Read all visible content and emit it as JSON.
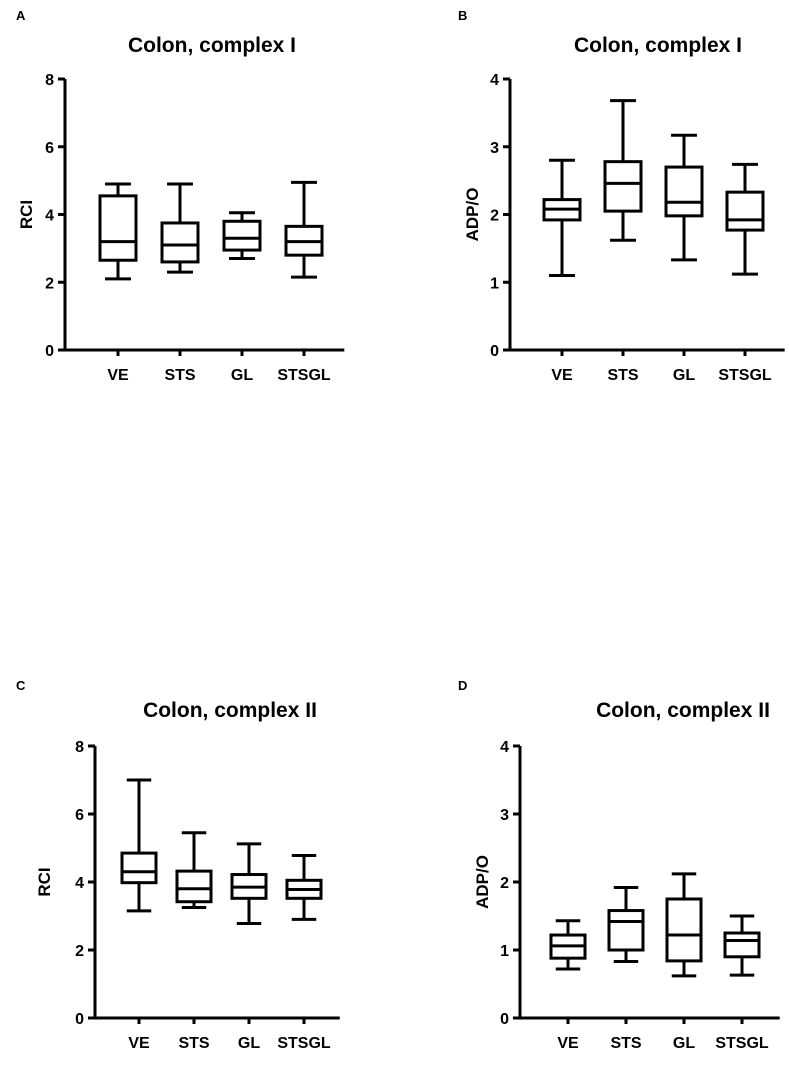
{
  "panels": [
    {
      "letter": "A",
      "chart_data": {
        "type": "box",
        "title": "Colon, complex I",
        "ylabel": "RCI",
        "xlabel": "",
        "categories": [
          "VE",
          "STS",
          "GL",
          "STSGL"
        ],
        "ylim": [
          0,
          8
        ],
        "yticks": [
          0,
          2,
          4,
          6,
          8
        ],
        "boxes": [
          {
            "min": 2.1,
            "q1": 2.65,
            "median": 3.2,
            "q3": 4.55,
            "max": 4.9
          },
          {
            "min": 2.3,
            "q1": 2.6,
            "median": 3.1,
            "q3": 3.75,
            "max": 4.9
          },
          {
            "min": 2.7,
            "q1": 2.95,
            "median": 3.3,
            "q3": 3.8,
            "max": 4.05
          },
          {
            "min": 2.15,
            "q1": 2.8,
            "median": 3.2,
            "q3": 3.65,
            "max": 4.95
          }
        ]
      }
    },
    {
      "letter": "B",
      "chart_data": {
        "type": "box",
        "title": "Colon, complex I",
        "ylabel": "ADP/O",
        "xlabel": "",
        "categories": [
          "VE",
          "STS",
          "GL",
          "STSGL"
        ],
        "ylim": [
          0,
          4
        ],
        "yticks": [
          0,
          1,
          2,
          3,
          4
        ],
        "boxes": [
          {
            "min": 1.1,
            "q1": 1.92,
            "median": 2.08,
            "q3": 2.22,
            "max": 2.8
          },
          {
            "min": 1.62,
            "q1": 2.05,
            "median": 2.46,
            "q3": 2.78,
            "max": 3.68
          },
          {
            "min": 1.33,
            "q1": 1.98,
            "median": 2.18,
            "q3": 2.7,
            "max": 3.17
          },
          {
            "min": 1.12,
            "q1": 1.77,
            "median": 1.92,
            "q3": 2.33,
            "max": 2.74
          }
        ]
      }
    },
    {
      "letter": "C",
      "chart_data": {
        "type": "box",
        "title": "Colon, complex II",
        "ylabel": "RCI",
        "xlabel": "",
        "categories": [
          "VE",
          "STS",
          "GL",
          "STSGL"
        ],
        "ylim": [
          0,
          8
        ],
        "yticks": [
          0,
          2,
          4,
          6,
          8
        ],
        "boxes": [
          {
            "min": 3.15,
            "q1": 3.98,
            "median": 4.3,
            "q3": 4.85,
            "max": 7.0
          },
          {
            "min": 3.25,
            "q1": 3.42,
            "median": 3.8,
            "q3": 4.32,
            "max": 5.45
          },
          {
            "min": 2.78,
            "q1": 3.52,
            "median": 3.85,
            "q3": 4.22,
            "max": 5.12
          },
          {
            "min": 2.9,
            "q1": 3.52,
            "median": 3.78,
            "q3": 4.05,
            "max": 4.78
          }
        ]
      }
    },
    {
      "letter": "D",
      "chart_data": {
        "type": "box",
        "title": "Colon, complex II",
        "ylabel": "ADP/O",
        "xlabel": "",
        "categories": [
          "VE",
          "STS",
          "GL",
          "STSGL"
        ],
        "ylim": [
          0,
          4
        ],
        "yticks": [
          0,
          1,
          2,
          3,
          4
        ],
        "boxes": [
          {
            "min": 0.72,
            "q1": 0.88,
            "median": 1.06,
            "q3": 1.22,
            "max": 1.43
          },
          {
            "min": 0.83,
            "q1": 1.0,
            "median": 1.42,
            "q3": 1.58,
            "max": 1.92
          },
          {
            "min": 0.62,
            "q1": 0.84,
            "median": 1.22,
            "q3": 1.75,
            "max": 2.12
          },
          {
            "min": 0.63,
            "q1": 0.9,
            "median": 1.14,
            "q3": 1.25,
            "max": 1.5
          }
        ]
      }
    }
  ]
}
